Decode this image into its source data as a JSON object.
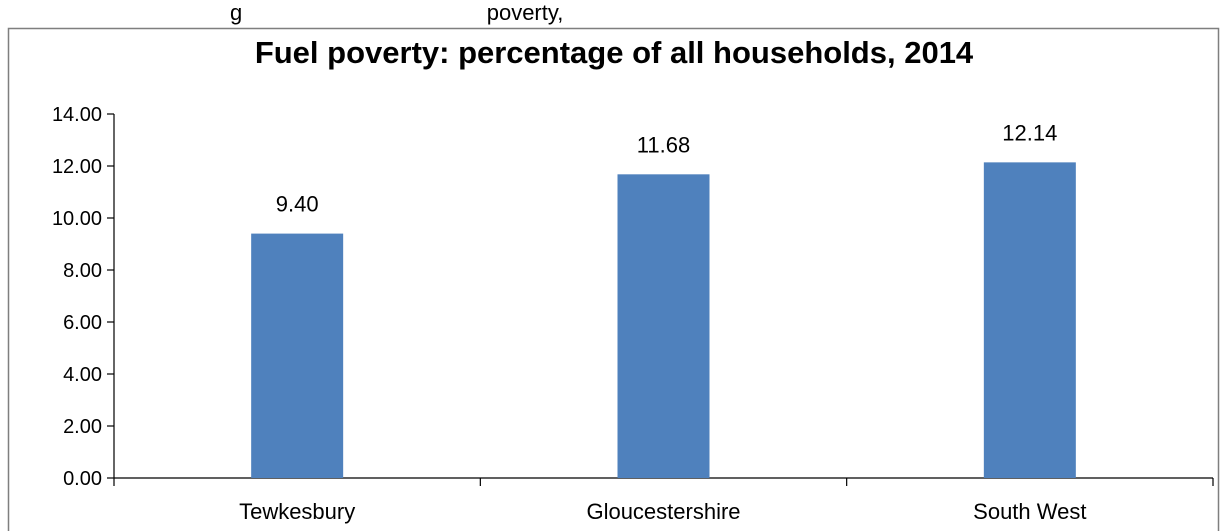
{
  "caption_partial": "g                                        poverty,",
  "chart_data": {
    "type": "bar",
    "title": "Fuel poverty: percentage of all households, 2014",
    "categories": [
      "Tewkesbury",
      "Gloucestershire",
      "South West"
    ],
    "values": [
      9.4,
      11.68,
      12.14
    ],
    "data_labels": [
      "9.40",
      "11.68",
      "12.14"
    ],
    "ylim": [
      0,
      14
    ],
    "yticks": [
      "0.00",
      "2.00",
      "4.00",
      "6.00",
      "8.00",
      "10.00",
      "12.00",
      "14.00"
    ],
    "xlabel": "",
    "ylabel": "",
    "grid": false,
    "legend": "none",
    "bar_color": "#4F81BD"
  }
}
